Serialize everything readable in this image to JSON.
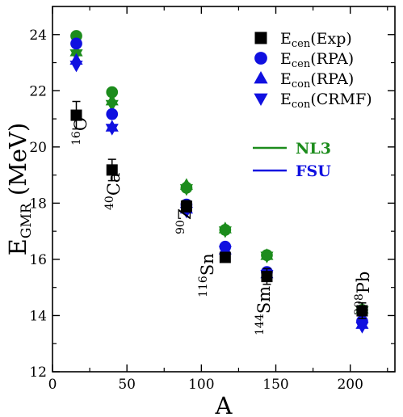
{
  "chart_data": {
    "type": "scatter",
    "title": "",
    "xlabel": "A",
    "ylabel": {
      "main": "E",
      "sub": "GMR",
      "unit": " (MeV)"
    },
    "xlim": [
      0,
      230
    ],
    "ylim": [
      12,
      25
    ],
    "x_ticks": [
      0,
      50,
      100,
      150,
      200
    ],
    "y_ticks": [
      12,
      14,
      16,
      18,
      20,
      22,
      24
    ],
    "grid": false,
    "legend_position": "top-right",
    "legend": [
      {
        "marker": "square",
        "main": "E",
        "sub": "cen",
        "rest": "(Exp)"
      },
      {
        "marker": "circle",
        "main": "E",
        "sub": "cen",
        "rest": "(RPA)"
      },
      {
        "marker": "triangle-up",
        "main": "E",
        "sub": "con",
        "rest": "(RPA)"
      },
      {
        "marker": "triangle-down",
        "main": "E",
        "sub": "con",
        "rest": "(CRMF)"
      }
    ],
    "parameter_sets": [
      {
        "name": "NL3",
        "color": "#1c8c1c"
      },
      {
        "name": "FSU",
        "color": "#1010e0"
      }
    ],
    "nuclei": [
      {
        "sup": "16",
        "sym": "O",
        "A": 16
      },
      {
        "sup": "40",
        "sym": "Ca",
        "A": 40
      },
      {
        "sup": "90",
        "sym": "Zr",
        "A": 90
      },
      {
        "sup": "116",
        "sym": "Sn",
        "A": 116
      },
      {
        "sup": "144",
        "sym": "Sm",
        "A": 144
      },
      {
        "sup": "208",
        "sym": "Pb",
        "A": 208
      }
    ],
    "series": [
      {
        "name": "Ecen(Exp)",
        "marker": "square",
        "color": "#000000",
        "x": [
          16,
          40,
          90,
          116,
          144,
          208
        ],
        "y": [
          21.13,
          19.18,
          17.89,
          16.07,
          15.39,
          14.17
        ],
        "yerr": [
          0.49,
          0.38,
          0.2,
          0.12,
          0.28,
          0.28
        ]
      },
      {
        "name": "Ecen(RPA) NL3",
        "marker": "circle",
        "color": "#1c8c1c",
        "x": [
          16,
          40,
          90,
          116,
          144,
          208
        ],
        "y": [
          23.95,
          21.95,
          18.55,
          17.05,
          16.15,
          14.2
        ]
      },
      {
        "name": "Econ(RPA) NL3",
        "marker": "triangle-up",
        "color": "#1c8c1c",
        "x": [
          16,
          40,
          90,
          116,
          144,
          208
        ],
        "y": [
          23.4,
          21.65,
          18.65,
          17.1,
          16.15,
          14.25
        ]
      },
      {
        "name": "Econ(CRMF) NL3",
        "marker": "triangle-down",
        "color": "#1c8c1c",
        "x": [
          16,
          40,
          90,
          116,
          144,
          208
        ],
        "y": [
          23.3,
          21.5,
          18.5,
          17.0,
          16.1,
          14.15
        ]
      },
      {
        "name": "Ecen(RPA) FSU",
        "marker": "circle",
        "color": "#1010e0",
        "x": [
          16,
          40,
          90,
          116,
          144,
          208
        ],
        "y": [
          23.68,
          21.17,
          17.95,
          16.45,
          15.55,
          13.8
        ]
      },
      {
        "name": "Econ(RPA) FSU",
        "marker": "triangle-up",
        "color": "#1010e0",
        "x": [
          16,
          40,
          90,
          116,
          144,
          208
        ],
        "y": [
          23.1,
          20.72,
          17.8,
          16.35,
          15.5,
          13.7
        ]
      },
      {
        "name": "Econ(CRMF) FSU",
        "marker": "triangle-down",
        "color": "#1010e0",
        "x": [
          16,
          40,
          90,
          116,
          144,
          208
        ],
        "y": [
          22.9,
          20.65,
          17.7,
          16.3,
          15.45,
          13.6
        ]
      }
    ]
  }
}
